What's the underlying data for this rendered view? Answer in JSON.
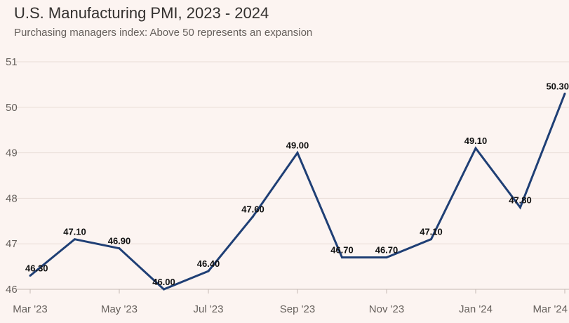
{
  "chart_data": {
    "type": "line",
    "title": "U.S. Manufacturing PMI, 2023 - 2024",
    "subtitle": "Purchasing managers index: Above 50 represents an expansion",
    "xlabel": "",
    "ylabel": "",
    "x": [
      "Mar '23",
      "Apr '23",
      "May '23",
      "Jun '23",
      "Jul '23",
      "Aug '23",
      "Sep '23",
      "Oct '23",
      "Nov '23",
      "Dec '23",
      "Jan '24",
      "Feb '24",
      "Mar '24"
    ],
    "x_tick_labels": [
      "Mar '23",
      "May '23",
      "Jul '23",
      "Sep '23",
      "Nov '23",
      "Jan '24",
      "Mar '24"
    ],
    "values": [
      46.3,
      47.1,
      46.9,
      46.0,
      46.4,
      47.6,
      49.0,
      46.7,
      46.7,
      47.1,
      49.1,
      47.8,
      50.3
    ],
    "data_labels": [
      "46.30",
      "47.10",
      "46.90",
      "46.00",
      "46.40",
      "47.60",
      "49.00",
      "46.70",
      "46.70",
      "47.10",
      "49.10",
      "47.80",
      "50.30"
    ],
    "ylim": [
      46,
      51
    ],
    "y_ticks": [
      46,
      47,
      48,
      49,
      50,
      51
    ],
    "grid": true,
    "legend": "none",
    "line_color": "#1f3f75"
  }
}
